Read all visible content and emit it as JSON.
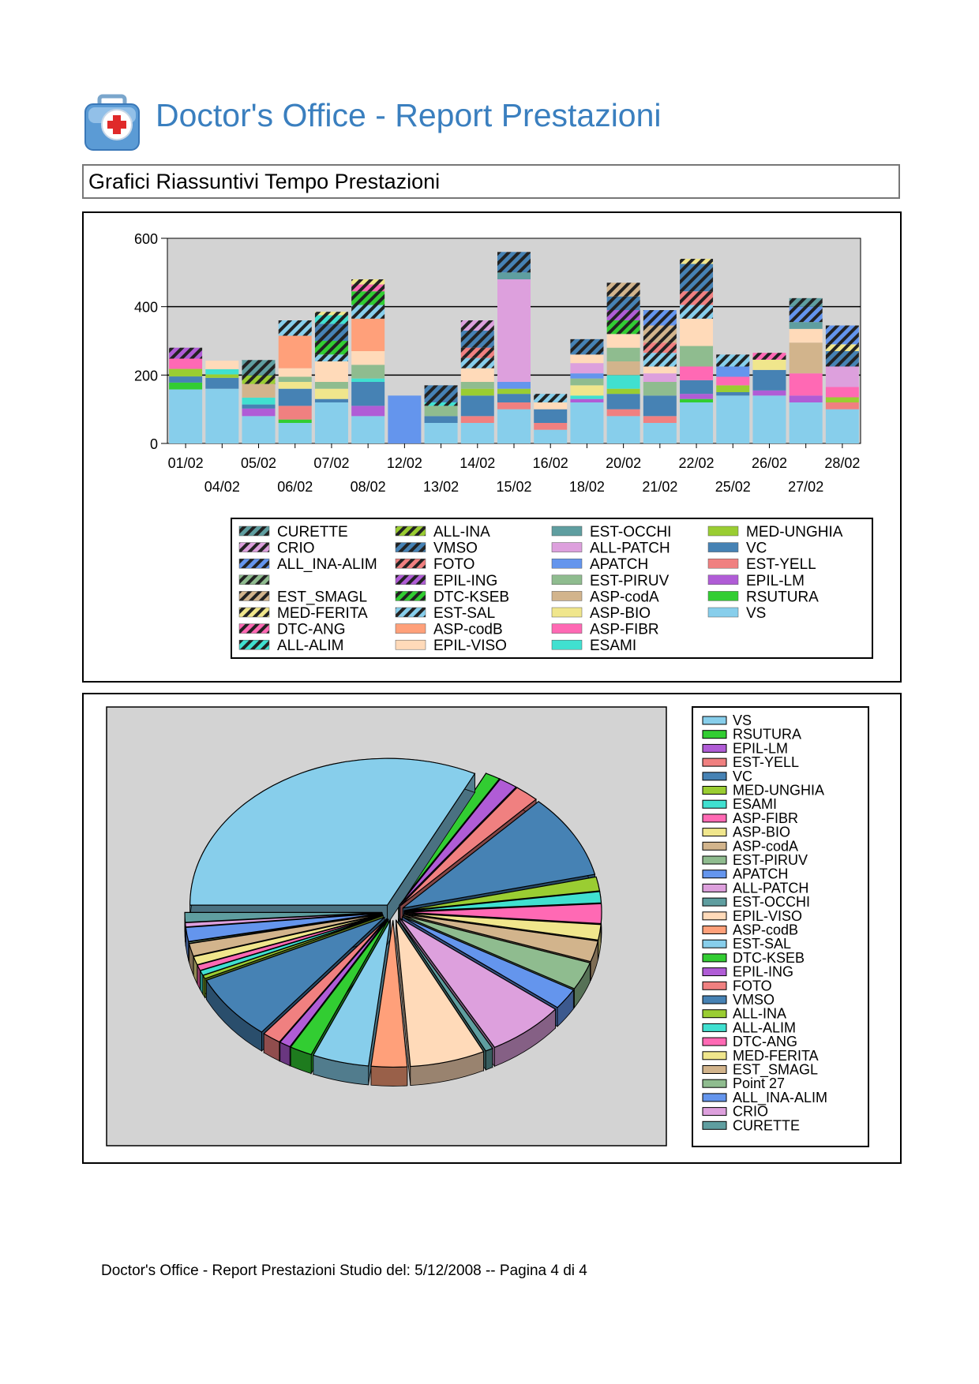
{
  "header": {
    "title": "Doctor's Office - Report Prestazioni",
    "logo_icon": "medical-kit-icon"
  },
  "section": {
    "title": "Grafici Riassuntivi Tempo Prestazioni"
  },
  "footer": {
    "text": "Doctor's Office - Report Prestazioni Studio del: 5/12/2008 -- Pagina 4 di 4"
  },
  "chart_data": [
    {
      "type": "bar",
      "stacked": true,
      "background": "#d3d3d3",
      "grid": "horizontal",
      "legend_position": "bottom",
      "ylim": [
        0,
        600
      ],
      "yticks": [
        0,
        200,
        400,
        600
      ],
      "categories": [
        "01/02",
        "04/02",
        "05/02",
        "06/02",
        "07/02",
        "08/02",
        "12/02",
        "13/02",
        "14/02",
        "15/02",
        "16/02",
        "18/02",
        "20/02",
        "21/02",
        "22/02",
        "25/02",
        "26/02",
        "27/02",
        "28/02"
      ],
      "series_order": [
        "VS",
        "RSUTURA",
        "EPIL-LM",
        "EST-YELL",
        "VC",
        "MED-UNGHIA",
        "ESAMI",
        "ASP-FIBR",
        "ASP-BIO",
        "ASP-codA",
        "EST-PIRUV",
        "APATCH",
        "ALL-PATCH",
        "EST-OCCHI",
        "EPIL-VISO",
        "ASP-codB",
        "EST-SAL",
        "DTC-KSEB",
        "EPIL-ING",
        "FOTO",
        "VMSO",
        "ALL-INA",
        "ALL-ALIM",
        "DTC-ANG",
        "MED-FERITA",
        "EST_SMAGL",
        "",
        "ALL_INA-ALIM",
        "CRIO",
        "CURETTE"
      ],
      "legend_order": [
        "CURETTE",
        "CRIO",
        "ALL_INA-ALIM",
        "",
        "EST_SMAGL",
        "MED-FERITA",
        "DTC-ANG",
        "ALL-ALIM",
        "ALL-INA",
        "VMSO",
        "FOTO",
        "EPIL-ING",
        "DTC-KSEB",
        "EST-SAL",
        "ASP-codB",
        "EPIL-VISO",
        "EST-OCCHI",
        "ALL-PATCH",
        "APATCH",
        "EST-PIRUV",
        "ASP-codA",
        "ASP-BIO",
        "ASP-FIBR",
        "ESAMI",
        "MED-UNGHIA",
        "VC",
        "EST-YELL",
        "EPIL-LM",
        "RSUTURA",
        "VS"
      ],
      "series_style": {
        "VS": {
          "color": "#87ceeb",
          "hatch": false
        },
        "RSUTURA": {
          "color": "#32cd32",
          "hatch": false
        },
        "EPIL-LM": {
          "color": "#b05cd6",
          "hatch": false
        },
        "EST-YELL": {
          "color": "#f08080",
          "hatch": false
        },
        "VC": {
          "color": "#4682b4",
          "hatch": false
        },
        "MED-UNGHIA": {
          "color": "#9acd32",
          "hatch": false
        },
        "ESAMI": {
          "color": "#40e0d0",
          "hatch": false
        },
        "ASP-FIBR": {
          "color": "#ff69b4",
          "hatch": false
        },
        "ASP-BIO": {
          "color": "#f0e68c",
          "hatch": false
        },
        "ASP-codA": {
          "color": "#d2b48c",
          "hatch": false
        },
        "EST-PIRUV": {
          "color": "#8fbc8f",
          "hatch": false
        },
        "APATCH": {
          "color": "#6495ed",
          "hatch": false
        },
        "ALL-PATCH": {
          "color": "#dda0dd",
          "hatch": false
        },
        "EST-OCCHI": {
          "color": "#5f9ea0",
          "hatch": false
        },
        "EPIL-VISO": {
          "color": "#ffdab9",
          "hatch": false
        },
        "ASP-codB": {
          "color": "#ffa07a",
          "hatch": false
        },
        "EST-SAL": {
          "color": "#87ceeb",
          "hatch": true
        },
        "DTC-KSEB": {
          "color": "#32cd32",
          "hatch": true
        },
        "EPIL-ING": {
          "color": "#b05cd6",
          "hatch": true
        },
        "FOTO": {
          "color": "#f08080",
          "hatch": true
        },
        "VMSO": {
          "color": "#4682b4",
          "hatch": true
        },
        "ALL-INA": {
          "color": "#9acd32",
          "hatch": true
        },
        "ALL-ALIM": {
          "color": "#40e0d0",
          "hatch": true
        },
        "DTC-ANG": {
          "color": "#ff69b4",
          "hatch": true
        },
        "MED-FERITA": {
          "color": "#f0e68c",
          "hatch": true
        },
        "EST_SMAGL": {
          "color": "#d2b48c",
          "hatch": true
        },
        "": {
          "color": "#8fbc8f",
          "hatch": true
        },
        "ALL_INA-ALIM": {
          "color": "#6495ed",
          "hatch": true
        },
        "CRIO": {
          "color": "#dda0dd",
          "hatch": true
        },
        "CURETTE": {
          "color": "#5f9ea0",
          "hatch": true
        }
      },
      "stacks": [
        [
          [
            "VS",
            158
          ],
          [
            "RSUTURA",
            20
          ],
          [
            "VC",
            18
          ],
          [
            "MED-UNGHIA",
            22
          ],
          [
            "ASP-FIBR",
            30
          ],
          [
            "EPIL-ING",
            32
          ]
        ],
        [
          [
            "VS",
            160
          ],
          [
            "VC",
            32
          ],
          [
            "MED-UNGHIA",
            10
          ],
          [
            "ESAMI",
            15
          ],
          [
            "EPIL-VISO",
            25
          ]
        ],
        [
          [
            "VS",
            80
          ],
          [
            "EPIL-LM",
            22
          ],
          [
            "VC",
            12
          ],
          [
            "ESAMI",
            20
          ],
          [
            "ASP-codA",
            40
          ],
          [
            "ALL-INA",
            25
          ],
          [
            "CURETTE",
            45
          ]
        ],
        [
          [
            "VS",
            60
          ],
          [
            "RSUTURA",
            10
          ],
          [
            "EST-YELL",
            40
          ],
          [
            "VC",
            50
          ],
          [
            "ASP-BIO",
            20
          ],
          [
            "EST-PIRUV",
            15
          ],
          [
            "EPIL-VISO",
            25
          ],
          [
            "ASP-codB",
            95
          ],
          [
            "EST-SAL",
            45
          ]
        ],
        [
          [
            "VS",
            120
          ],
          [
            "VC",
            10
          ],
          [
            "ASP-BIO",
            30
          ],
          [
            "EST-PIRUV",
            20
          ],
          [
            "EPIL-VISO",
            60
          ],
          [
            "EST-SAL",
            20
          ],
          [
            "DTC-KSEB",
            40
          ],
          [
            "VMSO",
            50
          ],
          [
            "ALL-ALIM",
            25
          ],
          [
            "MED-FERITA",
            10
          ]
        ],
        [
          [
            "VS",
            80
          ],
          [
            "EPIL-LM",
            30
          ],
          [
            "VC",
            70
          ],
          [
            "ESAMI",
            10
          ],
          [
            "EST-PIRUV",
            40
          ],
          [
            "EPIL-VISO",
            40
          ],
          [
            "ASP-codB",
            95
          ],
          [
            "EST-SAL",
            40
          ],
          [
            "DTC-KSEB",
            40
          ],
          [
            "DTC-ANG",
            20
          ],
          [
            "MED-FERITA",
            15
          ]
        ],
        [
          [
            "APATCH",
            140
          ]
        ],
        [
          [
            "VS",
            60
          ],
          [
            "VC",
            20
          ],
          [
            "EST-PIRUV",
            30
          ],
          [
            "ALL-ALIM",
            10
          ],
          [
            "VMSO",
            50
          ]
        ],
        [
          [
            "VS",
            60
          ],
          [
            "EST-YELL",
            20
          ],
          [
            "VC",
            60
          ],
          [
            "MED-UNGHIA",
            20
          ],
          [
            "EST-PIRUV",
            20
          ],
          [
            "EPIL-VISO",
            40
          ],
          [
            "EST-SAL",
            30
          ],
          [
            "FOTO",
            30
          ],
          [
            "VMSO",
            50
          ],
          [
            "CRIO",
            30
          ]
        ],
        [
          [
            "VS",
            100
          ],
          [
            "EST-YELL",
            20
          ],
          [
            "VC",
            25
          ],
          [
            "MED-UNGHIA",
            15
          ],
          [
            "APATCH",
            20
          ],
          [
            "ALL-PATCH",
            300
          ],
          [
            "EST-OCCHI",
            20
          ],
          [
            "VMSO",
            60
          ]
        ],
        [
          [
            "VS",
            40
          ],
          [
            "EST-YELL",
            20
          ],
          [
            "VC",
            40
          ],
          [
            "EPIL-VISO",
            20
          ],
          [
            "EST-SAL",
            25
          ]
        ],
        [
          [
            "VS",
            120
          ],
          [
            "EPIL-LM",
            10
          ],
          [
            "ESAMI",
            10
          ],
          [
            "ASP-BIO",
            30
          ],
          [
            "EST-PIRUV",
            20
          ],
          [
            "APATCH",
            15
          ],
          [
            "ALL-PATCH",
            30
          ],
          [
            "EPIL-VISO",
            25
          ],
          [
            "VMSO",
            45
          ]
        ],
        [
          [
            "VS",
            80
          ],
          [
            "EST-YELL",
            20
          ],
          [
            "VC",
            45
          ],
          [
            "MED-UNGHIA",
            15
          ],
          [
            "ESAMI",
            40
          ],
          [
            "ASP-codA",
            40
          ],
          [
            "EST-PIRUV",
            40
          ],
          [
            "EPIL-VISO",
            40
          ],
          [
            "DTC-KSEB",
            40
          ],
          [
            "EPIL-ING",
            30
          ],
          [
            "VMSO",
            40
          ],
          [
            "EST_SMAGL",
            40
          ]
        ],
        [
          [
            "VS",
            60
          ],
          [
            "EST-YELL",
            20
          ],
          [
            "VC",
            60
          ],
          [
            "EST-PIRUV",
            40
          ],
          [
            "ALL-PATCH",
            25
          ],
          [
            "EPIL-VISO",
            20
          ],
          [
            "EST-SAL",
            40
          ],
          [
            "FOTO",
            30
          ],
          [
            "EST_SMAGL",
            50
          ],
          [
            "ALL_INA-ALIM",
            45
          ]
        ],
        [
          [
            "VS",
            120
          ],
          [
            "RSUTURA",
            10
          ],
          [
            "EPIL-LM",
            15
          ],
          [
            "VC",
            40
          ],
          [
            "ASP-FIBR",
            40
          ],
          [
            "EST-PIRUV",
            60
          ],
          [
            "EPIL-VISO",
            80
          ],
          [
            "EST-SAL",
            40
          ],
          [
            "FOTO",
            40
          ],
          [
            "VMSO",
            80
          ],
          [
            "MED-FERITA",
            15
          ]
        ],
        [
          [
            "VS",
            140
          ],
          [
            "VC",
            10
          ],
          [
            "MED-UNGHIA",
            20
          ],
          [
            "ASP-FIBR",
            25
          ],
          [
            "APATCH",
            30
          ],
          [
            "EST-SAL",
            35
          ]
        ],
        [
          [
            "VS",
            140
          ],
          [
            "EPIL-LM",
            15
          ],
          [
            "VC",
            60
          ],
          [
            "ASP-BIO",
            30
          ],
          [
            "DTC-ANG",
            20
          ]
        ],
        [
          [
            "VS",
            120
          ],
          [
            "EPIL-LM",
            20
          ],
          [
            "ASP-FIBR",
            65
          ],
          [
            "ASP-codA",
            90
          ],
          [
            "EPIL-VISO",
            40
          ],
          [
            "EST-OCCHI",
            20
          ],
          [
            "ALL_INA-ALIM",
            45
          ],
          [
            "CURETTE",
            25
          ]
        ],
        [
          [
            "VS",
            100
          ],
          [
            "EST-YELL",
            20
          ],
          [
            "MED-UNGHIA",
            15
          ],
          [
            "ASP-FIBR",
            30
          ],
          [
            "ALL-PATCH",
            60
          ],
          [
            "VMSO",
            45
          ],
          [
            "MED-FERITA",
            20
          ],
          [
            "ALL_INA-ALIM",
            55
          ]
        ]
      ]
    },
    {
      "type": "pie",
      "exploded": true,
      "three_d": true,
      "background": "#d3d3d3",
      "legend_position": "right",
      "slices": [
        {
          "label": "VS",
          "value": 2100,
          "color": "#87ceeb"
        },
        {
          "label": "RSUTURA",
          "value": 80,
          "color": "#32cd32"
        },
        {
          "label": "EPIL-LM",
          "value": 100,
          "color": "#b05cd6"
        },
        {
          "label": "EST-YELL",
          "value": 130,
          "color": "#f08080"
        },
        {
          "label": "VC",
          "value": 600,
          "color": "#4682b4"
        },
        {
          "label": "MED-UNGHIA",
          "value": 100,
          "color": "#9acd32"
        },
        {
          "label": "ESAMI",
          "value": 80,
          "color": "#40e0d0"
        },
        {
          "label": "ASP-FIBR",
          "value": 140,
          "color": "#ff69b4"
        },
        {
          "label": "ASP-BIO",
          "value": 110,
          "color": "#f0e68c"
        },
        {
          "label": "ASP-codA",
          "value": 150,
          "color": "#d2b48c"
        },
        {
          "label": "EST-PIRUV",
          "value": 200,
          "color": "#8fbc8f"
        },
        {
          "label": "APATCH",
          "value": 150,
          "color": "#6495ed"
        },
        {
          "label": "ALL-PATCH",
          "value": 420,
          "color": "#dda0dd"
        },
        {
          "label": "EST-OCCHI",
          "value": 40,
          "color": "#5f9ea0"
        },
        {
          "label": "EPIL-VISO",
          "value": 400,
          "color": "#ffdab9"
        },
        {
          "label": "ASP-codB",
          "value": 190,
          "color": "#ffa07a"
        },
        {
          "label": "EST-SAL",
          "value": 300,
          "color": "#87ceeb"
        },
        {
          "label": "DTC-KSEB",
          "value": 120,
          "color": "#32cd32"
        },
        {
          "label": "EPIL-ING",
          "value": 60,
          "color": "#b05cd6"
        },
        {
          "label": "FOTO",
          "value": 100,
          "color": "#f08080"
        },
        {
          "label": "VMSO",
          "value": 470,
          "color": "#4682b4"
        },
        {
          "label": "ALL-INA",
          "value": 25,
          "color": "#9acd32"
        },
        {
          "label": "ALL-ALIM",
          "value": 35,
          "color": "#40e0d0"
        },
        {
          "label": "DTC-ANG",
          "value": 40,
          "color": "#ff69b4"
        },
        {
          "label": "MED-FERITA",
          "value": 60,
          "color": "#f0e68c"
        },
        {
          "label": "EST_SMAGL",
          "value": 90,
          "color": "#d2b48c"
        },
        {
          "label": "Point 27",
          "value": 10,
          "color": "#8fbc8f"
        },
        {
          "label": "ALL_INA-ALIM",
          "value": 100,
          "color": "#6495ed"
        },
        {
          "label": "CRIO",
          "value": 30,
          "color": "#dda0dd"
        },
        {
          "label": "CURETTE",
          "value": 70,
          "color": "#5f9ea0"
        }
      ]
    }
  ]
}
